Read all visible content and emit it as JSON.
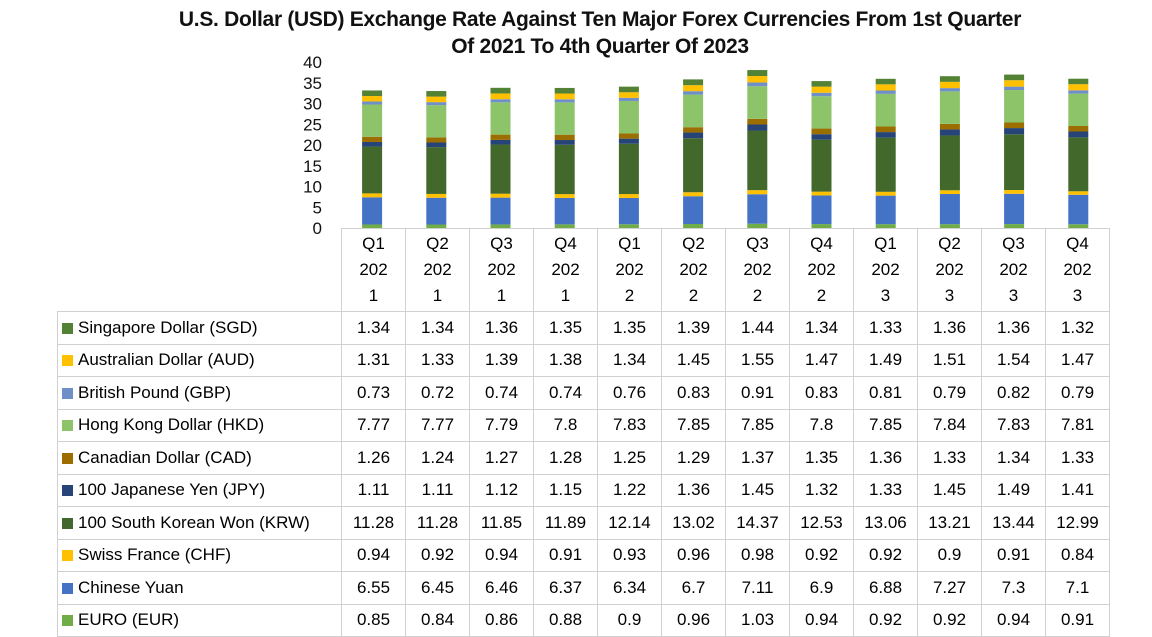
{
  "chart_data": {
    "type": "bar",
    "stacked": true,
    "title": "U.S. Dollar (USD) Exchange Rate Against Ten Major Forex Currencies From 1st Quarter Of 2021 To 4th Quarter Of 2023",
    "title_lines": [
      "U.S. Dollar (USD) Exchange Rate Against Ten Major Forex Currencies From 1st Quarter",
      "Of 2021 To 4th Quarter Of 2023"
    ],
    "xlabel": "",
    "ylabel": "",
    "ylim": [
      0,
      40
    ],
    "yticks": [
      0,
      5,
      10,
      15,
      20,
      25,
      30,
      35,
      40
    ],
    "grid": false,
    "legend": "data-table-left",
    "categories": [
      "Q1 2021",
      "Q2 2021",
      "Q3 2021",
      "Q4 2021",
      "Q1 2022",
      "Q2 2022",
      "Q3 2022",
      "Q4 2022",
      "Q1 2023",
      "Q2 2023",
      "Q3 2023",
      "Q4 2023"
    ],
    "category_label_lines": [
      [
        "Q1",
        "202",
        "1"
      ],
      [
        "Q2",
        "202",
        "1"
      ],
      [
        "Q3",
        "202",
        "1"
      ],
      [
        "Q4",
        "202",
        "1"
      ],
      [
        "Q1",
        "202",
        "2"
      ],
      [
        "Q2",
        "202",
        "2"
      ],
      [
        "Q3",
        "202",
        "2"
      ],
      [
        "Q4",
        "202",
        "2"
      ],
      [
        "Q1",
        "202",
        "3"
      ],
      [
        "Q2",
        "202",
        "3"
      ],
      [
        "Q3",
        "202",
        "3"
      ],
      [
        "Q4",
        "202",
        "3"
      ]
    ],
    "stack_order_bottom_to_top": [
      "EURO (EUR)",
      "Chinese Yuan",
      "Swiss France (CHF)",
      "100 South Korean Won (KRW)",
      "100 Japanese Yen (JPY)",
      "Canadian Dollar (CAD)",
      "Hong Kong Dollar (HKD)",
      "British Pound (GBP)",
      "Australian Dollar (AUD)",
      "Singapore Dollar (SGD)"
    ],
    "series": [
      {
        "name": "Singapore Dollar (SGD)",
        "color": "#548235",
        "values": [
          1.34,
          1.34,
          1.36,
          1.35,
          1.35,
          1.39,
          1.44,
          1.34,
          1.33,
          1.36,
          1.36,
          1.32
        ]
      },
      {
        "name": "Australian Dollar (AUD)",
        "color": "#FFC000",
        "values": [
          1.31,
          1.33,
          1.39,
          1.38,
          1.34,
          1.45,
          1.55,
          1.47,
          1.49,
          1.51,
          1.54,
          1.47
        ]
      },
      {
        "name": "British Pound (GBP)",
        "color": "#6F8FC9",
        "values": [
          0.73,
          0.72,
          0.74,
          0.74,
          0.76,
          0.83,
          0.91,
          0.83,
          0.81,
          0.79,
          0.82,
          0.79
        ]
      },
      {
        "name": "Hong Kong Dollar (HKD)",
        "color": "#8DC46A",
        "values": [
          7.77,
          7.77,
          7.79,
          7.8,
          7.83,
          7.85,
          7.85,
          7.8,
          7.85,
          7.84,
          7.83,
          7.81
        ]
      },
      {
        "name": "Canadian Dollar (CAD)",
        "color": "#9C6E00",
        "values": [
          1.26,
          1.24,
          1.27,
          1.28,
          1.25,
          1.29,
          1.37,
          1.35,
          1.36,
          1.33,
          1.34,
          1.33
        ]
      },
      {
        "name": "100 Japanese Yen (JPY)",
        "color": "#264478",
        "values": [
          1.11,
          1.11,
          1.12,
          1.15,
          1.22,
          1.36,
          1.45,
          1.32,
          1.33,
          1.45,
          1.49,
          1.41
        ]
      },
      {
        "name": "100 South Korean Won (KRW)",
        "color": "#43682B",
        "values": [
          11.28,
          11.28,
          11.85,
          11.89,
          12.14,
          13.02,
          14.37,
          12.53,
          13.06,
          13.21,
          13.44,
          12.99
        ]
      },
      {
        "name": "Swiss France (CHF)",
        "color": "#FFC000",
        "values": [
          0.94,
          0.92,
          0.94,
          0.91,
          0.93,
          0.96,
          0.98,
          0.92,
          0.92,
          0.9,
          0.91,
          0.84
        ]
      },
      {
        "name": "Chinese Yuan",
        "color": "#4472C4",
        "values": [
          6.55,
          6.45,
          6.46,
          6.37,
          6.34,
          6.7,
          7.11,
          6.9,
          6.88,
          7.27,
          7.3,
          7.1
        ]
      },
      {
        "name": "EURO (EUR)",
        "color": "#70AD47",
        "values": [
          0.85,
          0.84,
          0.86,
          0.88,
          0.9,
          0.96,
          1.03,
          0.94,
          0.92,
          0.92,
          0.94,
          0.91
        ]
      }
    ]
  }
}
